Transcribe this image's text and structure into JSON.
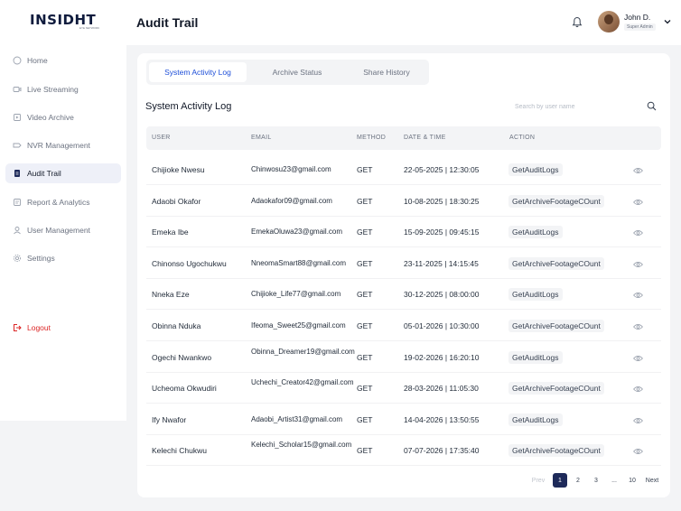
{
  "brand": {
    "logo": "INSIDHT",
    "logo_sub": "EYE NETWORK"
  },
  "header": {
    "title": "Audit Trail",
    "user_name": "John D.",
    "user_role": "Super Admin"
  },
  "sidebar": {
    "items": [
      {
        "label": "Home",
        "icon": "home-icon"
      },
      {
        "label": "Live Streaming",
        "icon": "video-icon"
      },
      {
        "label": "Video Archive",
        "icon": "archive-icon"
      },
      {
        "label": "NVR Management",
        "icon": "nvr-icon"
      },
      {
        "label": "Audit Trail",
        "icon": "document-icon",
        "active": true
      },
      {
        "label": "Report & Analytics",
        "icon": "report-icon"
      },
      {
        "label": "User Management",
        "icon": "users-icon"
      },
      {
        "label": "Settings",
        "icon": "gear-icon"
      }
    ],
    "logout": "Logout"
  },
  "tabs": [
    {
      "label": "System Activity Log",
      "active": true
    },
    {
      "label": "Archive Status"
    },
    {
      "label": "Share History"
    }
  ],
  "section_title": "System Activity Log",
  "search": {
    "placeholder": "Search by user name"
  },
  "table": {
    "columns": [
      "USER",
      "EMAIL",
      "METHOD",
      "DATE & TIME",
      "ACTION"
    ],
    "rows": [
      {
        "user": "Chijioke Nwesu",
        "email": "Chinwosu23@gmail.com",
        "method": "GET",
        "datetime": "22-05-2025 | 12:30:05",
        "action": "GetAuditLogs"
      },
      {
        "user": "Adaobi Okafor",
        "email": "Adaokafor09@gmail.com",
        "method": "GET",
        "datetime": "10-08-2025 | 18:30:25",
        "action": "GetArchiveFootageCOunt"
      },
      {
        "user": "Emeka Ibe",
        "email": "EmekaOluwa23@gmail.com",
        "method": "GET",
        "datetime": "15-09-2025 | 09:45:15",
        "action": "GetAuditLogs"
      },
      {
        "user": "Chinonso Ugochukwu",
        "email": "NneomaSmart88@gmail.com",
        "method": "GET",
        "datetime": "23-11-2025 | 14:15:45",
        "action": "GetArchiveFootageCOunt"
      },
      {
        "user": "Nneka Eze",
        "email": "Chijioke_Life77@gmail.com",
        "method": "GET",
        "datetime": "30-12-2025 | 08:00:00",
        "action": "GetAuditLogs"
      },
      {
        "user": "Obinna Nduka",
        "email": "Ifeoma_Sweet25@gmail.com",
        "method": "GET",
        "datetime": "05-01-2026 | 10:30:00",
        "action": "GetArchiveFootageCOunt"
      },
      {
        "user": "Ogechi Nwankwo",
        "email": "Obinna_Dreamer19@gmail.com",
        "method": "GET",
        "datetime": "19-02-2026 | 16:20:10",
        "action": "GetAuditLogs"
      },
      {
        "user": "Ucheoma Okwudiri",
        "email": "Uchechi_Creator42@gmail.com",
        "method": "GET",
        "datetime": "28-03-2026 | 11:05:30",
        "action": "GetArchiveFootageCOunt"
      },
      {
        "user": "Ify Nwafor",
        "email": "Adaobi_Artist31@gmail.com",
        "method": "GET",
        "datetime": "14-04-2026 | 13:50:55",
        "action": "GetAuditLogs"
      },
      {
        "user": "Kelechi Chukwu",
        "email": "Kelechi_Scholar15@gmail.com",
        "method": "GET",
        "datetime": "07-07-2026 | 17:35:40",
        "action": "GetArchiveFootageCOunt"
      }
    ]
  },
  "pagination": {
    "prev": "Prev",
    "pages": [
      "1",
      "2",
      "3",
      "...",
      "10"
    ],
    "current": "1",
    "next": "Next"
  }
}
